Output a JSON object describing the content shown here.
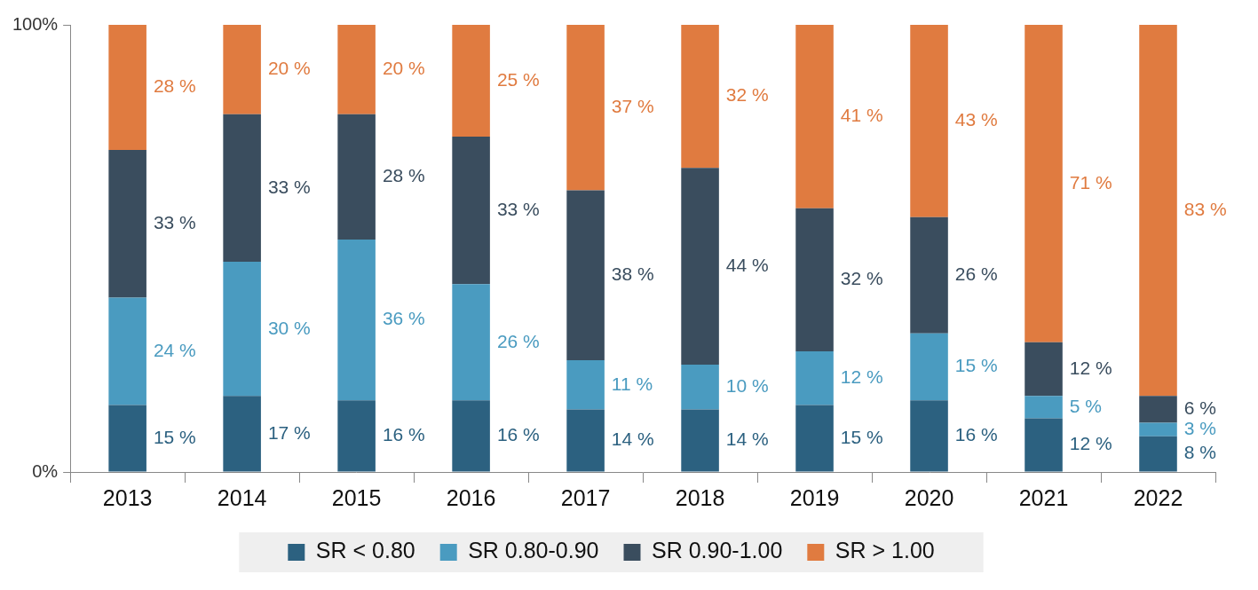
{
  "chart_data": {
    "type": "bar",
    "categories": [
      "2013",
      "2014",
      "2015",
      "2016",
      "2017",
      "2018",
      "2019",
      "2020",
      "2021",
      "2022"
    ],
    "series": [
      {
        "name": "SR < 0.80",
        "color": "#2c6180",
        "values": [
          15,
          17,
          16,
          16,
          14,
          14,
          15,
          16,
          12,
          8
        ],
        "value_labels": [
          "15 %",
          "17 %",
          "16 %",
          "16 %",
          "14 %",
          "14 %",
          "15 %",
          "16 %",
          "12 %",
          "8 %"
        ]
      },
      {
        "name": "SR 0.80-0.90",
        "color": "#4a9bc0",
        "values": [
          24,
          30,
          36,
          26,
          11,
          10,
          12,
          15,
          5,
          3
        ],
        "value_labels": [
          "24 %",
          "30 %",
          "36 %",
          "26 %",
          "11 %",
          "10 %",
          "12 %",
          "15 %",
          "5 %",
          "3 %"
        ]
      },
      {
        "name": "SR 0.90-1.00",
        "color": "#3a4d5e",
        "values": [
          33,
          33,
          28,
          33,
          38,
          44,
          32,
          26,
          12,
          6
        ],
        "value_labels": [
          "33 %",
          "33 %",
          "28 %",
          "33 %",
          "38 %",
          "44 %",
          "32 %",
          "26 %",
          "12 %",
          "6 %"
        ]
      },
      {
        "name": "SR > 1.00",
        "color": "#e07b40",
        "values": [
          28,
          20,
          20,
          25,
          37,
          32,
          41,
          43,
          71,
          83
        ],
        "value_labels": [
          "28 %",
          "20 %",
          "20 %",
          "25 %",
          "37 %",
          "32 %",
          "41 %",
          "43 %",
          "71 %",
          "83 %"
        ]
      }
    ],
    "ylim": [
      0,
      100
    ],
    "yticks": [
      {
        "value": 0,
        "label": "0%"
      },
      {
        "value": 100,
        "label": "100%"
      }
    ],
    "stacked": true,
    "data_labels": true,
    "grid": false,
    "legend": "bottom"
  }
}
